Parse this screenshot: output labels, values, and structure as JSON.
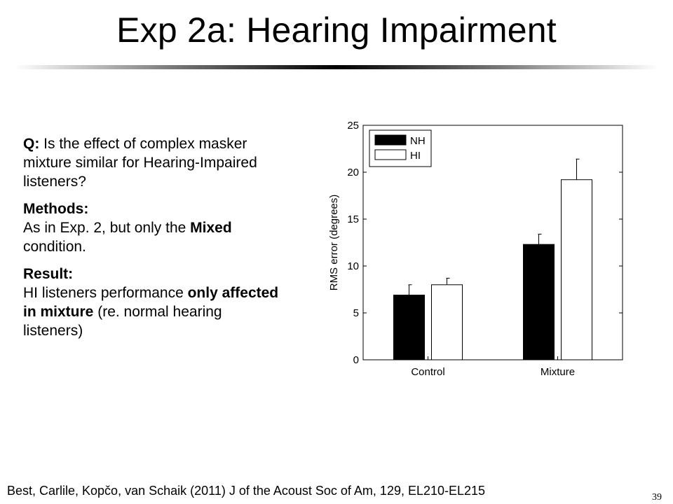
{
  "slide": {
    "title": "Exp 2a: Hearing Impairment",
    "question_label": "Q:",
    "question_text": "Is the effect of complex masker mixture similar for Hearing-Impaired listeners?",
    "methods_label": "Methods:",
    "methods_text_1": "As in Exp. 2, but only the",
    "methods_bold": "Mixed",
    "methods_text_2": "condition.",
    "result_label": "Result:",
    "result_text_1": "HI listeners performance",
    "result_bold": "only affected in mixture",
    "result_text_2": "(re. normal hearing listeners)",
    "citation": "Best, Carlile, Kopčo, van Schaik (2011) J of the Acoust Soc of Am, 129, EL210-EL215",
    "page_number": "39"
  },
  "chart_data": {
    "type": "bar",
    "categories": [
      "Control",
      "Mixture"
    ],
    "series": [
      {
        "name": "NH",
        "values": [
          6.9,
          12.3
        ],
        "errors": [
          1.1,
          1.1
        ],
        "color": "#000000"
      },
      {
        "name": "HI",
        "values": [
          8.0,
          19.2
        ],
        "errors": [
          0.7,
          2.2
        ],
        "color": "#ffffff"
      }
    ],
    "ylabel": "RMS error (degrees)",
    "ylim": [
      0,
      25
    ],
    "yticks": [
      0,
      5,
      10,
      15,
      20,
      25
    ],
    "legend_position": "top-left",
    "grid": false
  }
}
